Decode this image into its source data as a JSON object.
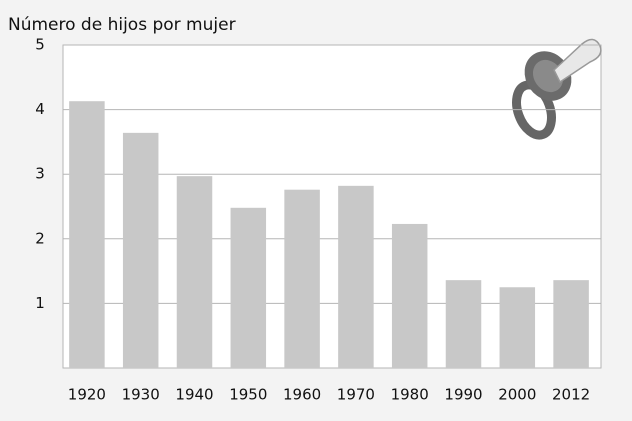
{
  "chart_data": {
    "type": "bar",
    "title": "Número de hijos por mujer",
    "categories": [
      "1920",
      "1930",
      "1940",
      "1950",
      "1960",
      "1970",
      "1980",
      "1990",
      "2000",
      "2012"
    ],
    "values": [
      4.13,
      3.64,
      2.97,
      2.48,
      2.76,
      2.82,
      2.23,
      1.36,
      1.25,
      1.36
    ],
    "color": "#c8c8c8",
    "ylim": [
      0,
      5
    ],
    "yticks": [
      1,
      2,
      3,
      4,
      5
    ],
    "grid": true
  }
}
